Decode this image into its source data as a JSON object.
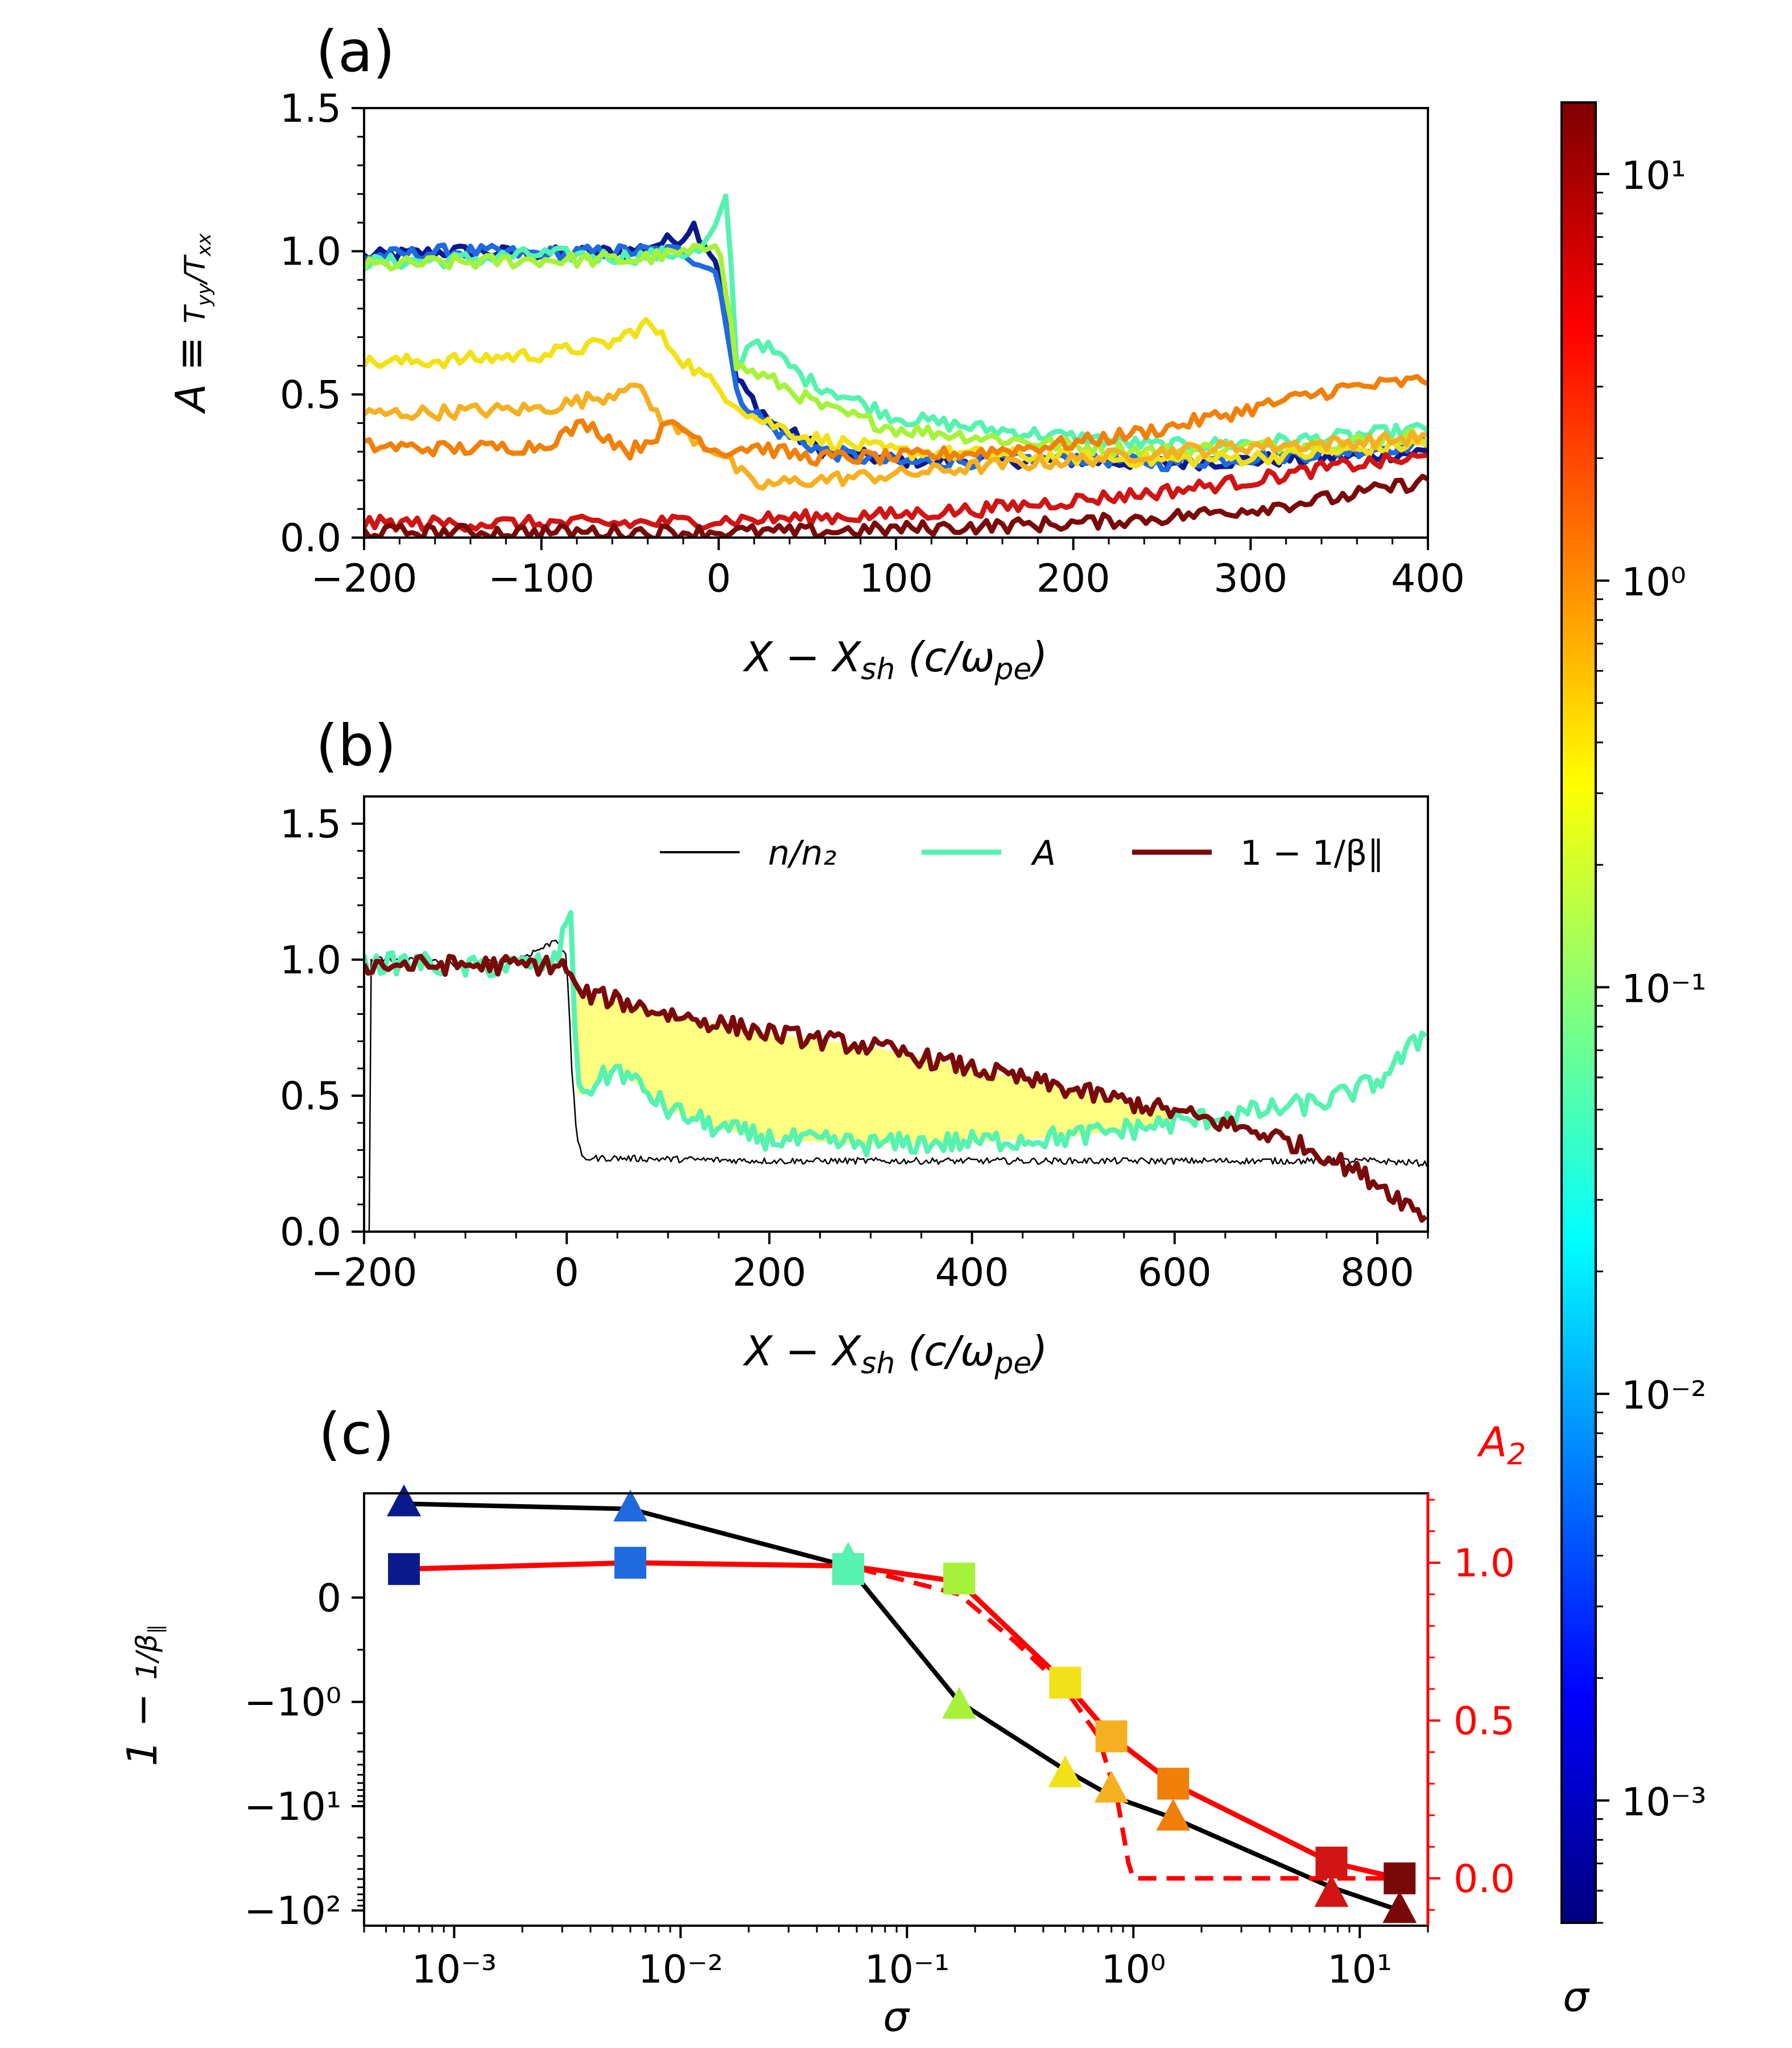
{
  "panels": {
    "a": "(a)",
    "b": "(b)",
    "c": "(c)"
  },
  "chart_data": [
    {
      "id": "a",
      "type": "line",
      "xlabel": "X − X_sh (c/ω_pe)",
      "ylabel": "A ≡ T_yy / T_xx",
      "xlim": [
        -200,
        400
      ],
      "ylim": [
        0,
        1.5
      ],
      "xticks": [
        -200,
        -100,
        0,
        100,
        200,
        300,
        400
      ],
      "yticks": [
        0.0,
        0.5,
        1.0,
        1.5
      ],
      "series": [
        {
          "sigma": 0.0006,
          "color": "#0a1a8c",
          "points": [
            [
              -200,
              0.98
            ],
            [
              -150,
              1.0
            ],
            [
              -100,
              0.99
            ],
            [
              -50,
              1.0
            ],
            [
              -20,
              1.05
            ],
            [
              -15,
              1.1
            ],
            [
              0,
              0.95
            ],
            [
              10,
              0.55
            ],
            [
              30,
              0.4
            ],
            [
              60,
              0.3
            ],
            [
              100,
              0.27
            ],
            [
              150,
              0.27
            ],
            [
              200,
              0.27
            ],
            [
              250,
              0.26
            ],
            [
              300,
              0.27
            ],
            [
              350,
              0.28
            ],
            [
              400,
              0.3
            ]
          ]
        },
        {
          "sigma": 0.006,
          "color": "#1f6ae0",
          "points": [
            [
              -200,
              0.98
            ],
            [
              -150,
              1.0
            ],
            [
              -100,
              0.99
            ],
            [
              -50,
              1.0
            ],
            [
              -20,
              1.0
            ],
            [
              0,
              0.92
            ],
            [
              10,
              0.5
            ],
            [
              30,
              0.38
            ],
            [
              60,
              0.3
            ],
            [
              100,
              0.26
            ],
            [
              150,
              0.27
            ],
            [
              200,
              0.28
            ],
            [
              250,
              0.26
            ],
            [
              300,
              0.28
            ],
            [
              350,
              0.3
            ],
            [
              400,
              0.33
            ]
          ]
        },
        {
          "sigma": 0.055,
          "color": "#55f2b0",
          "points": [
            [
              -200,
              0.96
            ],
            [
              -150,
              0.97
            ],
            [
              -100,
              0.99
            ],
            [
              -50,
              0.98
            ],
            [
              -10,
              1.0
            ],
            [
              0,
              1.1
            ],
            [
              5,
              1.2
            ],
            [
              10,
              0.6
            ],
            [
              20,
              0.7
            ],
            [
              50,
              0.55
            ],
            [
              100,
              0.42
            ],
            [
              150,
              0.38
            ],
            [
              200,
              0.35
            ],
            [
              250,
              0.32
            ],
            [
              300,
              0.33
            ],
            [
              350,
              0.35
            ],
            [
              400,
              0.38
            ]
          ]
        },
        {
          "sigma": 0.17,
          "color": "#a6f23a",
          "points": [
            [
              -200,
              0.95
            ],
            [
              -150,
              0.96
            ],
            [
              -100,
              0.97
            ],
            [
              -50,
              0.97
            ],
            [
              -10,
              1.0
            ],
            [
              0,
              1.05
            ],
            [
              10,
              0.6
            ],
            [
              30,
              0.55
            ],
            [
              60,
              0.45
            ],
            [
              100,
              0.38
            ],
            [
              150,
              0.35
            ],
            [
              200,
              0.32
            ],
            [
              250,
              0.3
            ],
            [
              300,
              0.32
            ],
            [
              350,
              0.33
            ],
            [
              400,
              0.36
            ]
          ]
        },
        {
          "sigma": 0.5,
          "color": "#f2e116",
          "points": [
            [
              -200,
              0.61
            ],
            [
              -150,
              0.62
            ],
            [
              -100,
              0.64
            ],
            [
              -60,
              0.68
            ],
            [
              -40,
              0.75
            ],
            [
              -20,
              0.62
            ],
            [
              0,
              0.52
            ],
            [
              20,
              0.42
            ],
            [
              50,
              0.35
            ],
            [
              100,
              0.3
            ],
            [
              150,
              0.29
            ],
            [
              200,
              0.28
            ],
            [
              250,
              0.27
            ],
            [
              300,
              0.28
            ],
            [
              350,
              0.3
            ],
            [
              400,
              0.33
            ]
          ]
        },
        {
          "sigma": 0.8,
          "color": "#f5b022",
          "points": [
            [
              -200,
              0.43
            ],
            [
              -150,
              0.44
            ],
            [
              -100,
              0.45
            ],
            [
              -60,
              0.5
            ],
            [
              -50,
              0.55
            ],
            [
              -30,
              0.4
            ],
            [
              0,
              0.3
            ],
            [
              20,
              0.18
            ],
            [
              50,
              0.2
            ],
            [
              100,
              0.22
            ],
            [
              150,
              0.25
            ],
            [
              200,
              0.27
            ],
            [
              250,
              0.3
            ],
            [
              300,
              0.32
            ],
            [
              350,
              0.33
            ],
            [
              400,
              0.35
            ]
          ]
        },
        {
          "sigma": 1.5,
          "color": "#f0800a",
          "points": [
            [
              -200,
              0.32
            ],
            [
              -150,
              0.31
            ],
            [
              -100,
              0.32
            ],
            [
              -75,
              0.4
            ],
            [
              -50,
              0.3
            ],
            [
              -25,
              0.4
            ],
            [
              0,
              0.3
            ],
            [
              20,
              0.32
            ],
            [
              50,
              0.28
            ],
            [
              100,
              0.28
            ],
            [
              150,
              0.3
            ],
            [
              200,
              0.33
            ],
            [
              250,
              0.38
            ],
            [
              300,
              0.45
            ],
            [
              350,
              0.52
            ],
            [
              400,
              0.55
            ]
          ]
        },
        {
          "sigma": 7.5,
          "color": "#d11414",
          "points": [
            [
              -200,
              0.05
            ],
            [
              -150,
              0.05
            ],
            [
              -100,
              0.05
            ],
            [
              -50,
              0.05
            ],
            [
              0,
              0.06
            ],
            [
              50,
              0.07
            ],
            [
              100,
              0.08
            ],
            [
              150,
              0.1
            ],
            [
              200,
              0.13
            ],
            [
              250,
              0.16
            ],
            [
              300,
              0.2
            ],
            [
              350,
              0.25
            ],
            [
              400,
              0.28
            ]
          ]
        },
        {
          "sigma": 15,
          "color": "#7a0a0a",
          "points": [
            [
              -200,
              0.02
            ],
            [
              -150,
              0.02
            ],
            [
              -100,
              0.02
            ],
            [
              -50,
              0.02
            ],
            [
              0,
              0.02
            ],
            [
              50,
              0.02
            ],
            [
              100,
              0.03
            ],
            [
              150,
              0.04
            ],
            [
              200,
              0.05
            ],
            [
              250,
              0.07
            ],
            [
              300,
              0.1
            ],
            [
              350,
              0.14
            ],
            [
              400,
              0.2
            ]
          ]
        }
      ]
    },
    {
      "id": "b",
      "type": "line",
      "xlabel": "X − X_sh (c/ω_pe)",
      "xlim": [
        -200,
        850
      ],
      "ylim": [
        0,
        1.6
      ],
      "xticks": [
        -200,
        0,
        200,
        400,
        600,
        800
      ],
      "yticks": [
        0.0,
        0.5,
        1.0,
        1.5
      ],
      "legend": [
        "n/n₂",
        "A",
        "1 − 1/β∥"
      ],
      "legend_position": "top-right",
      "series": [
        {
          "name": "n/n₂",
          "color": "#000000",
          "points": [
            [
              -195,
              0.0
            ],
            [
              -193,
              1.0
            ],
            [
              -150,
              1.0
            ],
            [
              -100,
              0.98
            ],
            [
              -50,
              1.0
            ],
            [
              -20,
              1.05
            ],
            [
              -10,
              1.08
            ],
            [
              0,
              1.0
            ],
            [
              5,
              0.6
            ],
            [
              10,
              0.35
            ],
            [
              15,
              0.27
            ],
            [
              50,
              0.27
            ],
            [
              200,
              0.26
            ],
            [
              400,
              0.26
            ],
            [
              600,
              0.26
            ],
            [
              800,
              0.26
            ],
            [
              850,
              0.25
            ]
          ]
        },
        {
          "name": "A",
          "color": "#55f2b0",
          "points": [
            [
              -200,
              0.98
            ],
            [
              -150,
              0.99
            ],
            [
              -100,
              0.97
            ],
            [
              -50,
              0.98
            ],
            [
              -10,
              0.99
            ],
            [
              0,
              1.15
            ],
            [
              5,
              1.2
            ],
            [
              10,
              0.5
            ],
            [
              50,
              0.6
            ],
            [
              100,
              0.45
            ],
            [
              150,
              0.38
            ],
            [
              200,
              0.34
            ],
            [
              300,
              0.32
            ],
            [
              400,
              0.33
            ],
            [
              500,
              0.35
            ],
            [
              600,
              0.4
            ],
            [
              700,
              0.45
            ],
            [
              750,
              0.48
            ],
            [
              800,
              0.55
            ],
            [
              840,
              0.7
            ],
            [
              850,
              0.75
            ]
          ]
        },
        {
          "name": "1 − 1/β∥",
          "color": "#7a0a0a",
          "points": [
            [
              -200,
              0.98
            ],
            [
              -100,
              0.98
            ],
            [
              -10,
              0.98
            ],
            [
              0,
              0.97
            ],
            [
              10,
              0.88
            ],
            [
              50,
              0.85
            ],
            [
              100,
              0.8
            ],
            [
              200,
              0.73
            ],
            [
              300,
              0.68
            ],
            [
              400,
              0.6
            ],
            [
              500,
              0.52
            ],
            [
              600,
              0.44
            ],
            [
              700,
              0.35
            ],
            [
              750,
              0.28
            ],
            [
              800,
              0.18
            ],
            [
              850,
              0.05
            ]
          ]
        }
      ],
      "shaded_region": {
        "color": "#ffff80",
        "between": [
          "A",
          "1 − 1/β∥"
        ],
        "x_range": [
          10,
          600
        ]
      }
    },
    {
      "id": "c",
      "type": "scatter",
      "xlabel": "σ",
      "ylabel": "1 − 1/β∥",
      "ylabel_right": "A₂",
      "xscale": "log",
      "xlim": [
        0.0004,
        20
      ],
      "yscale_left": "symlog",
      "ylim_left": [
        -140,
        1.0
      ],
      "ylim_right": [
        -0.15,
        1.22
      ],
      "xticks": [
        "10⁻³",
        "10⁻²",
        "10⁻¹",
        "10⁰",
        "10¹"
      ],
      "yticks_left": [
        "0",
        "−10⁰",
        "−10¹",
        "−10²"
      ],
      "yticks_right": [
        "0.0",
        "0.5",
        "1.0"
      ],
      "points": [
        {
          "sigma": 0.0006,
          "beta_term": 0.9,
          "A2": 0.98,
          "color": "#0a1a8c"
        },
        {
          "sigma": 0.006,
          "beta_term": 0.85,
          "A2": 1.0,
          "color": "#1f6ae0"
        },
        {
          "sigma": 0.055,
          "beta_term": 0.35,
          "A2": 0.98,
          "color": "#55f2b0"
        },
        {
          "sigma": 0.17,
          "beta_term": -1.1,
          "A2": 0.95,
          "color": "#a6f23a"
        },
        {
          "sigma": 0.5,
          "beta_term": -5.0,
          "A2": 0.62,
          "color": "#f2e116"
        },
        {
          "sigma": 0.8,
          "beta_term": -7.0,
          "A2": 0.45,
          "color": "#f5b022"
        },
        {
          "sigma": 1.5,
          "beta_term": -13.0,
          "A2": 0.3,
          "color": "#f0800a"
        },
        {
          "sigma": 7.5,
          "beta_term": -70.0,
          "A2": 0.05,
          "color": "#d11414"
        },
        {
          "sigma": 15.0,
          "beta_term": -100.0,
          "A2": 0.0,
          "color": "#7a0a0a"
        }
      ],
      "black_line": [
        [
          0.0006,
          0.9
        ],
        [
          0.006,
          0.85
        ],
        [
          0.055,
          0.3
        ],
        [
          0.17,
          -1.0
        ],
        [
          0.5,
          -4.5
        ],
        [
          0.8,
          -8.0
        ],
        [
          1.5,
          -13.0
        ],
        [
          7.5,
          -60.0
        ],
        [
          15,
          -100.0
        ]
      ],
      "red_solid": [
        [
          0.0006,
          0.98
        ],
        [
          0.006,
          1.0
        ],
        [
          0.055,
          0.99
        ],
        [
          0.17,
          0.94
        ],
        [
          0.5,
          0.62
        ],
        [
          0.8,
          0.45
        ],
        [
          1.5,
          0.3
        ],
        [
          7.5,
          0.05
        ],
        [
          15,
          0.0
        ]
      ],
      "red_dashed": [
        [
          0.0006,
          0.98
        ],
        [
          0.006,
          1.0
        ],
        [
          0.055,
          0.99
        ],
        [
          0.17,
          0.9
        ],
        [
          0.3,
          0.75
        ],
        [
          0.5,
          0.6
        ],
        [
          0.7,
          0.45
        ],
        [
          0.85,
          0.25
        ],
        [
          0.95,
          0.05
        ],
        [
          1.0,
          0.0
        ],
        [
          15,
          0.0
        ]
      ]
    },
    {
      "id": "colorbar",
      "type": "colorbar",
      "label": "σ",
      "scale": "log",
      "range": [
        0.0005,
        15
      ],
      "ticks": [
        "10⁻³",
        "10⁻²",
        "10⁻¹",
        "10⁰",
        "10¹"
      ],
      "colormap": [
        "#00007f",
        "#0000ff",
        "#007fff",
        "#00ffff",
        "#7fff7f",
        "#ffff00",
        "#ff7f00",
        "#ff0000",
        "#7f0000"
      ]
    }
  ]
}
